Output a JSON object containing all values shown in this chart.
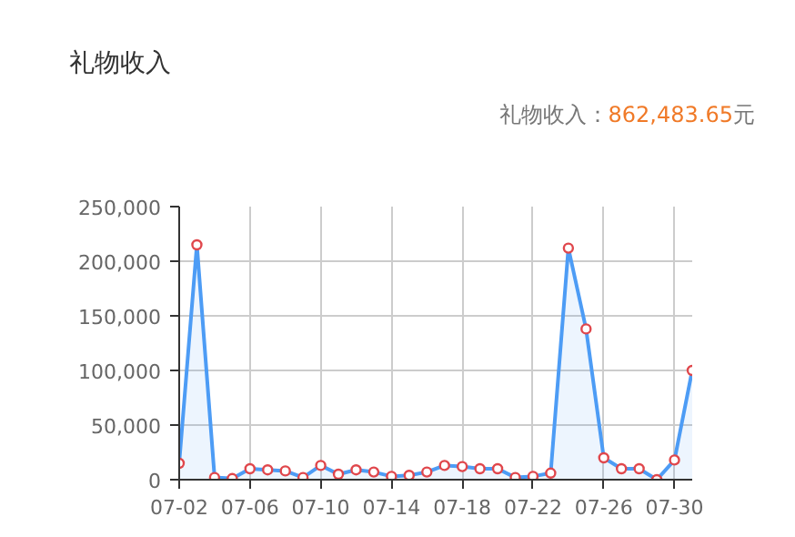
{
  "chart_data": {
    "type": "area",
    "title": "礼物收入",
    "subtitle": "礼物收入：862,483.65元",
    "categories": [
      "07-02",
      null,
      null,
      null,
      "07-06",
      null,
      null,
      null,
      "07-10",
      null,
      null,
      null,
      "07-14",
      null,
      null,
      null,
      "07-18",
      null,
      null,
      null,
      "07-22",
      null,
      null,
      null,
      "07-26",
      null,
      null,
      null,
      "07-30",
      null
    ],
    "series": [
      {
        "color": "#4d9cf5",
        "values": [
          15000,
          215000,
          2000,
          1000,
          10000,
          9000,
          8000,
          2000,
          13000,
          5000,
          9000,
          7000,
          3000,
          4000,
          7000,
          13000,
          12000,
          10000,
          10000,
          2000,
          3000,
          6000,
          212000,
          138000,
          20000,
          10000,
          10000,
          0,
          18000,
          100000
        ]
      }
    ],
    "ylim": [
      0,
      250000
    ],
    "yticks": [
      {
        "value": 0,
        "label": "0"
      },
      {
        "value": 50000,
        "label": "50,000"
      },
      {
        "value": 100000,
        "label": "100,000"
      },
      {
        "value": 150000,
        "label": "150,000"
      },
      {
        "value": 200000,
        "label": "200,000"
      },
      {
        "value": 250000,
        "label": "250,000"
      }
    ],
    "grid": true,
    "marker": "circle",
    "line_style": "solid"
  }
}
